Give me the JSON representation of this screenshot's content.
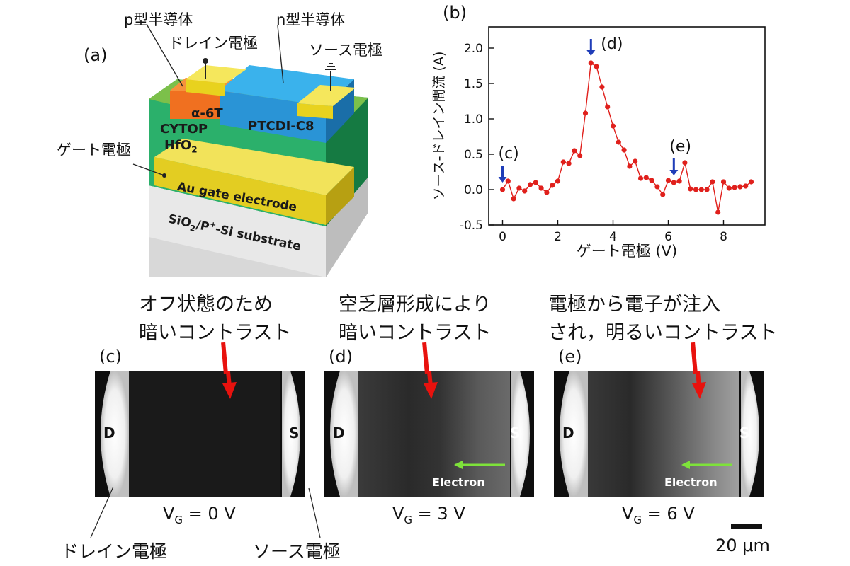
{
  "panel_a": {
    "label": "(a)",
    "labels": {
      "p_type": "p型半導体",
      "n_type": "n型半導体",
      "drain": "ドレイン電極",
      "source": "ソース電極",
      "gate": "ゲート電極",
      "alpha6t": "α-6T",
      "ptcdi": "PTCDI-C8",
      "cytop": "CYTOP",
      "hfo2": "HfO",
      "hfo2_sub": "2",
      "au_gate": "Au gate electrode",
      "substrate_a": "SiO",
      "substrate_sub": "2",
      "substrate_b": "/P",
      "substrate_sup": "+",
      "substrate_c": "-Si substrate"
    }
  },
  "panel_b": {
    "label": "(b)",
    "arrow_labels": [
      "(c)",
      "(d)",
      "(e)"
    ]
  },
  "chart_data": {
    "type": "line",
    "xlabel": "ゲート電極 (V)",
    "ylabel": "ソース-ドレイン間流 (A)",
    "xlim": [
      -0.5,
      9.5
    ],
    "ylim": [
      -0.5,
      2.3
    ],
    "xticks": [
      "0",
      "2",
      "4",
      "6",
      "8"
    ],
    "yticks": [
      "-0.5",
      "0.0",
      "0.5",
      "1.0",
      "1.5",
      "2.0"
    ],
    "series": [
      {
        "color": "#e0201c",
        "x": [
          0.0,
          0.2,
          0.4,
          0.6,
          0.8,
          1.0,
          1.2,
          1.4,
          1.6,
          1.8,
          2.0,
          2.2,
          2.4,
          2.6,
          2.8,
          3.0,
          3.2,
          3.4,
          3.6,
          3.8,
          4.0,
          4.2,
          4.4,
          4.6,
          4.8,
          5.0,
          5.2,
          5.4,
          5.6,
          5.8,
          6.0,
          6.2,
          6.4,
          6.6,
          6.8,
          7.0,
          7.2,
          7.4,
          7.6,
          7.8,
          8.0,
          8.2,
          8.4,
          8.6,
          8.8,
          9.0
        ],
        "y": [
          0.0,
          0.12,
          -0.13,
          0.02,
          -0.02,
          0.07,
          0.1,
          0.02,
          -0.04,
          0.06,
          0.12,
          0.39,
          0.37,
          0.55,
          0.48,
          1.08,
          1.79,
          1.74,
          1.45,
          1.17,
          0.9,
          0.67,
          0.56,
          0.33,
          0.4,
          0.16,
          0.17,
          0.13,
          0.04,
          -0.07,
          0.13,
          0.1,
          0.12,
          0.38,
          0.01,
          0.0,
          0.0,
          0.0,
          0.11,
          -0.32,
          0.11,
          0.02,
          0.03,
          0.04,
          0.05,
          0.11
        ]
      }
    ],
    "markers": [
      {
        "label": "(c)",
        "x": 0.0
      },
      {
        "label": "(d)",
        "x": 3.2
      },
      {
        "label": "(e)",
        "x": 6.2
      }
    ],
    "grid": false,
    "legend": "none"
  },
  "images": [
    {
      "label": "(c)",
      "caption_line1": "オフ状態のため",
      "caption_line2": "暗いコントラスト",
      "d": "D",
      "s": "S",
      "vg_prefix": "V",
      "vg_sub": "G",
      "vg_value": " = 0 V",
      "electron": ""
    },
    {
      "label": "(d)",
      "caption_line1": "空乏層形成により",
      "caption_line2": "暗いコントラスト",
      "d": "D",
      "s": "S",
      "vg_prefix": "V",
      "vg_sub": "G",
      "vg_value": " = 3 V",
      "electron": "Electron"
    },
    {
      "label": "(e)",
      "caption_line1": "電極から電子が注入",
      "caption_line2": "され，明るいコントラスト",
      "d": "D",
      "s": "S",
      "vg_prefix": "V",
      "vg_sub": "G",
      "vg_value": " = 6 V",
      "electron": "Electron"
    }
  ],
  "bottom": {
    "drain_label": "ドレイン電極",
    "source_label": "ソース電極",
    "scale": "20 μm"
  },
  "colors": {
    "arrow_red": "#e8120e",
    "arrow_blue": "#1f3db8",
    "electron_green": "#7ee23a",
    "data_red": "#e0201c"
  }
}
